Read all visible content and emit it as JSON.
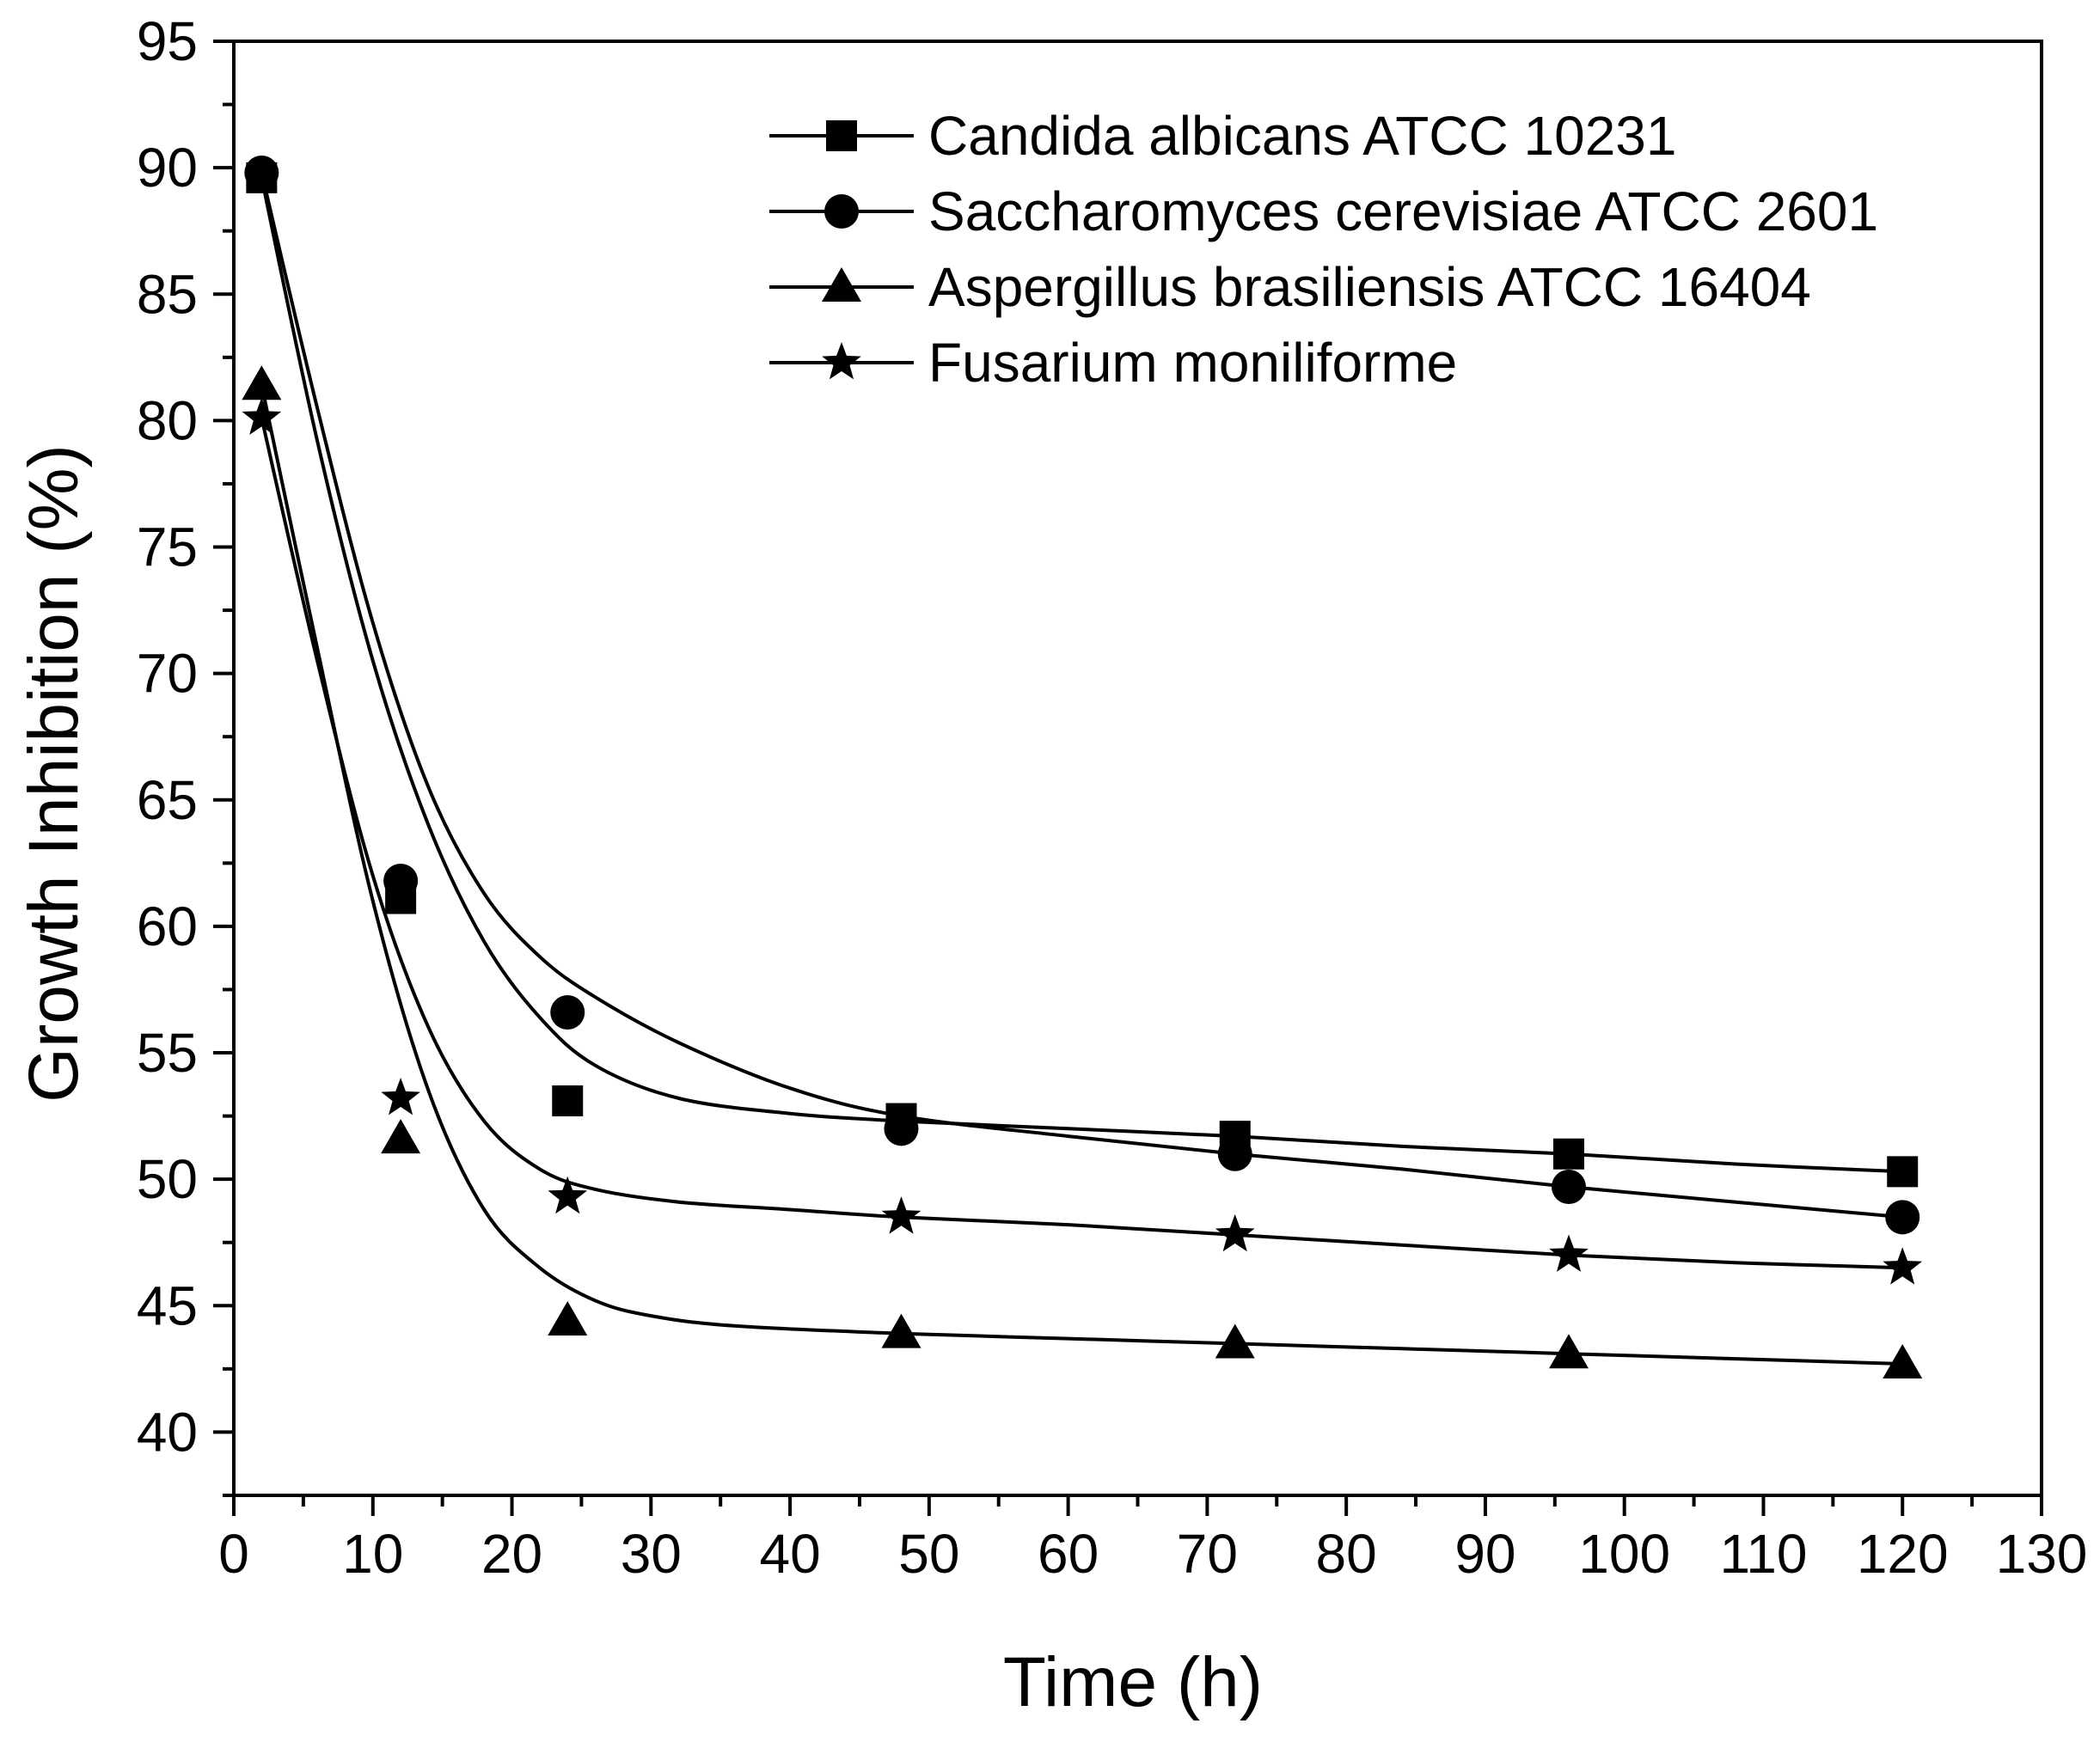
{
  "chart_data": {
    "type": "scatter",
    "title": "",
    "xlabel": "Time (h)",
    "ylabel": "Growth Inhibition (%)",
    "xlim": [
      0,
      130
    ],
    "ylim": [
      37.5,
      95
    ],
    "xticks": [
      0,
      10,
      20,
      30,
      40,
      50,
      60,
      70,
      80,
      90,
      100,
      110,
      120,
      130
    ],
    "yticks": [
      40,
      45,
      50,
      55,
      60,
      65,
      70,
      75,
      80,
      85,
      90,
      95
    ],
    "grid": false,
    "legend_position": "top-right",
    "x": [
      2,
      12,
      24,
      48,
      72,
      96,
      120
    ],
    "series": [
      {
        "name": "Candida albicans ATCC 10231",
        "marker": "square",
        "values": [
          89.6,
          61.1,
          53.1,
          52.4,
          51.7,
          51.0,
          50.3
        ],
        "fit": [
          [
            2,
            89.6
          ],
          [
            6,
            79.2
          ],
          [
            10,
            70.5
          ],
          [
            14,
            64.0
          ],
          [
            18,
            59.4
          ],
          [
            22,
            56.4
          ],
          [
            26,
            54.5
          ],
          [
            32,
            53.2
          ],
          [
            40,
            52.6
          ],
          [
            48,
            52.3
          ],
          [
            60,
            52.0
          ],
          [
            72,
            51.7
          ],
          [
            84,
            51.3
          ],
          [
            96,
            51.0
          ],
          [
            108,
            50.6
          ],
          [
            120,
            50.3
          ]
        ]
      },
      {
        "name": "Saccharomyces cerevisiae ATCC 2601",
        "marker": "circle",
        "values": [
          89.8,
          61.8,
          56.6,
          52.0,
          51.0,
          49.7,
          48.5
        ],
        "fit": [
          [
            2,
            89.8
          ],
          [
            6,
            80.5
          ],
          [
            10,
            72.0
          ],
          [
            14,
            65.5
          ],
          [
            18,
            61.3
          ],
          [
            22,
            58.8
          ],
          [
            26,
            57.2
          ],
          [
            32,
            55.4
          ],
          [
            40,
            53.6
          ],
          [
            48,
            52.5
          ],
          [
            60,
            51.7
          ],
          [
            72,
            51.0
          ],
          [
            84,
            50.4
          ],
          [
            96,
            49.7
          ],
          [
            108,
            49.1
          ],
          [
            120,
            48.5
          ]
        ]
      },
      {
        "name": "Aspergillus brasiliensis ATCC 16404",
        "marker": "triangle",
        "values": [
          81.4,
          51.6,
          44.4,
          43.9,
          43.5,
          43.1,
          42.7
        ],
        "fit": [
          [
            2,
            81.4
          ],
          [
            6,
            71.0
          ],
          [
            10,
            61.0
          ],
          [
            14,
            53.5
          ],
          [
            18,
            48.8
          ],
          [
            22,
            46.5
          ],
          [
            26,
            45.2
          ],
          [
            30,
            44.6
          ],
          [
            36,
            44.2
          ],
          [
            48,
            43.9
          ],
          [
            60,
            43.7
          ],
          [
            72,
            43.5
          ],
          [
            84,
            43.3
          ],
          [
            96,
            43.1
          ],
          [
            108,
            42.9
          ],
          [
            120,
            42.7
          ]
        ]
      },
      {
        "name": "Fusarium moniliforme",
        "marker": "star",
        "values": [
          80.1,
          53.2,
          49.3,
          48.5,
          47.8,
          47.0,
          46.5
        ],
        "fit": [
          [
            2,
            80.1
          ],
          [
            6,
            70.5
          ],
          [
            10,
            62.0
          ],
          [
            14,
            56.0
          ],
          [
            18,
            52.3
          ],
          [
            22,
            50.4
          ],
          [
            26,
            49.6
          ],
          [
            32,
            49.1
          ],
          [
            40,
            48.8
          ],
          [
            48,
            48.5
          ],
          [
            60,
            48.2
          ],
          [
            72,
            47.8
          ],
          [
            84,
            47.4
          ],
          [
            96,
            47.0
          ],
          [
            108,
            46.7
          ],
          [
            120,
            46.5
          ]
        ]
      }
    ]
  }
}
